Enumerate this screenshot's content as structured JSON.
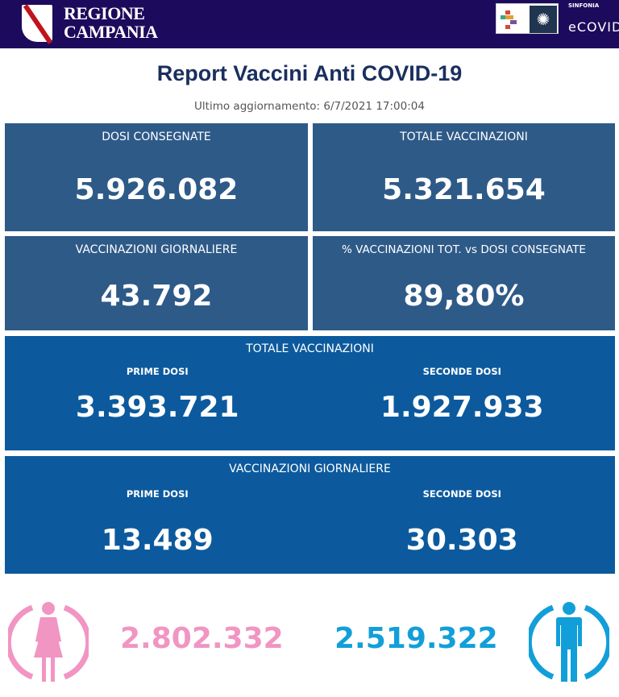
{
  "header": {
    "brand_line1": "REGIONE",
    "brand_line2": "CAMPANIA",
    "partner_small": "SINFONIA",
    "partner_name": "eCOVID"
  },
  "title": "Report Vaccini Anti COVID-19",
  "updated": "Ultimo aggiornamento: 6/7/2021  17:00:04",
  "cards": [
    {
      "label": "DOSI  CONSEGNATE",
      "value": "5.926.082"
    },
    {
      "label": "TOTALE VACCINAZIONI",
      "value": "5.321.654"
    },
    {
      "label": "VACCINAZIONI GIORNALIERE",
      "value": "43.792"
    },
    {
      "label": "% VACCINAZIONI TOT. vs DOSI CONSEGNATE",
      "value": "89,80%"
    }
  ],
  "totale": {
    "label": "TOTALE VACCINAZIONI",
    "prime_label": "PRIME DOSI",
    "prime": "3.393.721",
    "seconde_label": "SECONDE DOSI",
    "seconde": "1.927.933"
  },
  "giornaliere": {
    "label": "VACCINAZIONI GIORNALIERE",
    "prime_label": "PRIME DOSI",
    "prime": "13.489",
    "seconde_label": "SECONDE DOSI",
    "seconde": "30.303"
  },
  "gender": {
    "female": "2.802.332",
    "male": "2.519.322",
    "female_color": "#f195c3",
    "male_color": "#129fd9"
  }
}
